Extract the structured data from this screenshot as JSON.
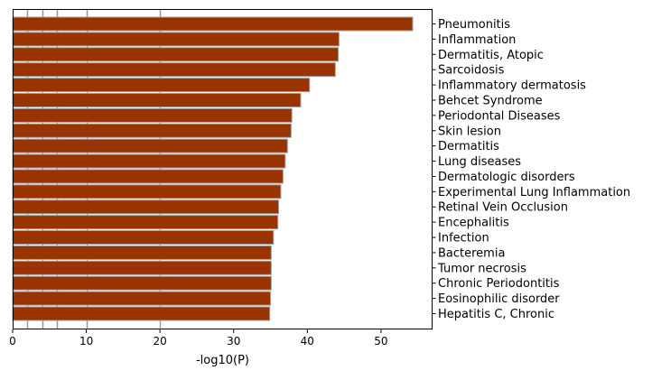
{
  "chart_data": {
    "type": "bar",
    "orientation": "horizontal",
    "title": "",
    "xlabel": "-log10(P)",
    "ylabel": "",
    "xlim": [
      0,
      57
    ],
    "x_ticks": [
      0,
      10,
      20,
      30,
      40,
      50
    ],
    "reference_lines": [
      2,
      4,
      6,
      10,
      20
    ],
    "category_label_position": "right",
    "bar_color": "#993300",
    "bar_edge_color": "#a0a0a0",
    "reference_line_color": "#999999",
    "categories": [
      "Pneumonitis",
      "Inflammation",
      "Dermatitis, Atopic",
      "Sarcoidosis",
      "Inflammatory dermatosis",
      "Behcet Syndrome",
      "Periodontal Diseases",
      "Skin lesion",
      "Dermatitis",
      "Lung diseases",
      "Dermatologic disorders",
      "Experimental Lung Inflammation",
      "Retinal Vein Occlusion",
      "Encephalitis",
      "Infection",
      "Bacteremia",
      "Tumor necrosis",
      "Chronic Periodontitis",
      "Eosinophilic disorder",
      "Hepatitis C, Chronic"
    ],
    "values": [
      54.3,
      44.3,
      44.2,
      43.8,
      40.3,
      39.1,
      37.9,
      37.8,
      37.3,
      37.0,
      36.7,
      36.4,
      36.1,
      36.0,
      35.4,
      35.1,
      35.1,
      35.1,
      35.0,
      34.9
    ]
  }
}
